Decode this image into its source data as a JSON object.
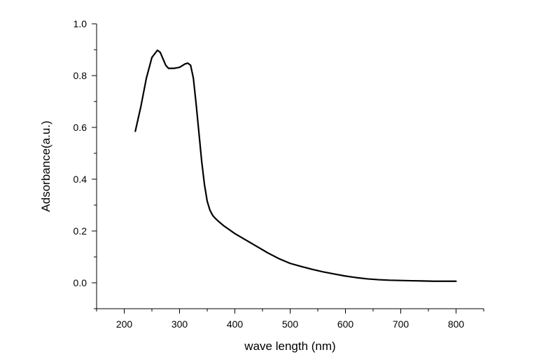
{
  "chart_data": {
    "type": "line",
    "xlabel": "wave length (nm)",
    "ylabel": "Adsorbance(a.u.)",
    "xlim": [
      150,
      850
    ],
    "ylim": [
      -0.1,
      1.0
    ],
    "x_ticks": [
      200,
      300,
      400,
      500,
      600,
      700,
      800
    ],
    "y_ticks": [
      0.0,
      0.2,
      0.4,
      0.6,
      0.8,
      1.0
    ],
    "x_tick_labels": [
      "200",
      "300",
      "400",
      "500",
      "600",
      "700",
      "800"
    ],
    "y_tick_labels": [
      "0.0",
      "0.2",
      "0.4",
      "0.6",
      "0.8",
      "1.0"
    ],
    "grid": false,
    "legend": "none",
    "series": [
      {
        "color": "#000000",
        "x": [
          220,
          230,
          240,
          250,
          260,
          265,
          270,
          275,
          280,
          290,
          300,
          310,
          315,
          320,
          325,
          330,
          335,
          340,
          345,
          350,
          355,
          360,
          365,
          370,
          380,
          390,
          400,
          420,
          440,
          460,
          480,
          500,
          520,
          540,
          560,
          580,
          600,
          620,
          640,
          660,
          680,
          700,
          720,
          740,
          760,
          780,
          800
        ],
        "y": [
          0.585,
          0.68,
          0.79,
          0.87,
          0.898,
          0.89,
          0.865,
          0.84,
          0.828,
          0.828,
          0.832,
          0.845,
          0.848,
          0.84,
          0.79,
          0.69,
          0.58,
          0.47,
          0.38,
          0.315,
          0.28,
          0.26,
          0.248,
          0.238,
          0.22,
          0.205,
          0.19,
          0.165,
          0.14,
          0.115,
          0.093,
          0.075,
          0.063,
          0.052,
          0.042,
          0.034,
          0.026,
          0.02,
          0.015,
          0.012,
          0.01,
          0.009,
          0.008,
          0.007,
          0.006,
          0.006,
          0.006
        ]
      }
    ]
  }
}
